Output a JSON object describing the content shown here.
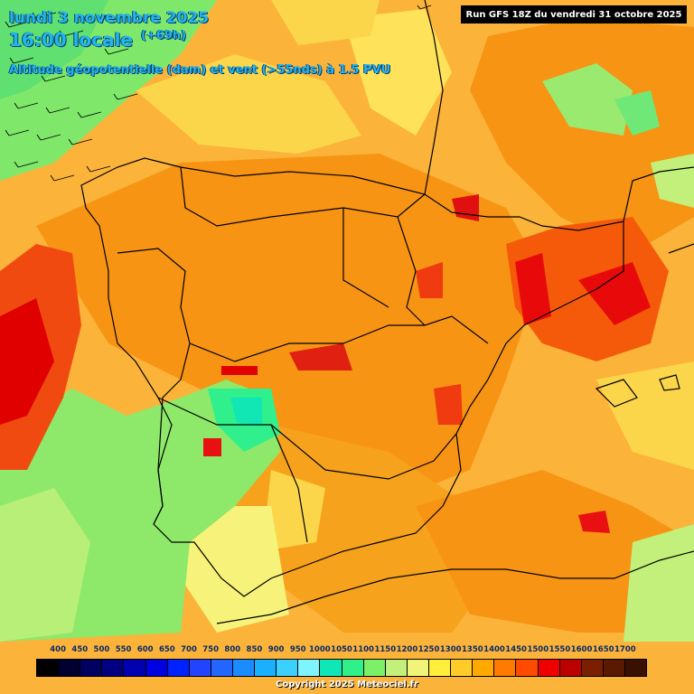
{
  "header": {
    "date_line": "lundi 3 novembre 2025",
    "time_line": "16:00 locale",
    "offset": "(+69h)",
    "parameter": "Altitude géopotentielle (dam) et vent (>55nds) à 1.5 PVU",
    "run_info": "Run GFS 18Z du vendredi 31 octobre 2025"
  },
  "legend": {
    "labels": [
      "400",
      "450",
      "500",
      "550",
      "600",
      "650",
      "700",
      "750",
      "800",
      "850",
      "900",
      "950",
      "1000",
      "1050",
      "1100",
      "1150",
      "1200",
      "1250",
      "1300",
      "1350",
      "1400",
      "1450",
      "1500",
      "1550",
      "1600",
      "1650",
      "1700"
    ],
    "colors": [
      "#000000",
      "#000030",
      "#000060",
      "#000080",
      "#0000b0",
      "#0000e0",
      "#0022ff",
      "#2244ff",
      "#2266ff",
      "#1a8cff",
      "#19b0ff",
      "#3cd0ff",
      "#7ef4ff",
      "#0fe7b6",
      "#30f08a",
      "#7df06a",
      "#c2f07a",
      "#f0f57a",
      "#ffef3a",
      "#ffcc2a",
      "#ffa800",
      "#ff7a00",
      "#ff4a00",
      "#ee0000",
      "#bb0000",
      "#7a2000",
      "#5a1a00",
      "#3a1000"
    ]
  },
  "footer": {
    "copyright": "Copyright 2025 Meteociel.fr"
  },
  "icons": {
    "wind_barb": "wind-barb-icon"
  }
}
